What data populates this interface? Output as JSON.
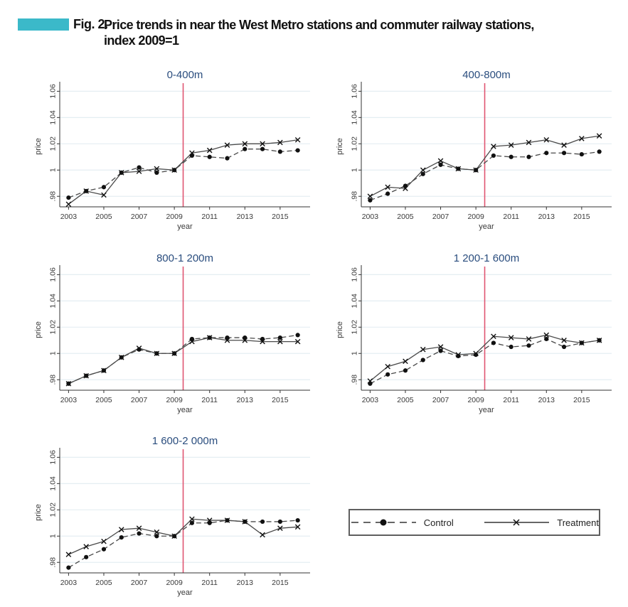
{
  "figure": {
    "label": "Fig. 2.",
    "title_line1": "Price trends in near the West Metro stations and commuter railway stations,",
    "title_line2": "index 2009=1"
  },
  "legend": {
    "control_label": "Control",
    "treatment_label": "Treatment"
  },
  "colors": {
    "accent_teal": "#3bb9c9",
    "panel_title_navy": "#2a4d7e",
    "event_line_red": "#e05571",
    "gridline": "#e4eef2",
    "series_line_gray": "#4a4a4a",
    "marker_black": "#111111",
    "axis_line": "#333333",
    "axis_text": "#3a3a3a"
  },
  "chart_data": [
    {
      "type": "line",
      "title": "0-400m",
      "xlabel": "year",
      "ylabel": "price",
      "x": [
        2003,
        2004,
        2005,
        2006,
        2007,
        2008,
        2009,
        2010,
        2011,
        2012,
        2013,
        2014,
        2015,
        2016
      ],
      "xticks": [
        2003,
        2005,
        2007,
        2009,
        2011,
        2013,
        2015
      ],
      "yticks": [
        0.98,
        1,
        1.02,
        1.04,
        1.06
      ],
      "ytick_labels": [
        ".98",
        "1",
        "1.02",
        "1.04",
        "1.06"
      ],
      "xlim": [
        2002.5,
        2016.7
      ],
      "ylim": [
        0.972,
        1.064
      ],
      "grid": true,
      "event_line_x": 2009.5,
      "series": [
        {
          "name": "Control",
          "style": "dashed-circle",
          "values": [
            0.979,
            0.984,
            0.987,
            0.998,
            1.002,
            0.998,
            1.0,
            1.011,
            1.01,
            1.009,
            1.016,
            1.016,
            1.014,
            1.015
          ]
        },
        {
          "name": "Treatment",
          "style": "solid-x",
          "values": [
            0.974,
            0.984,
            0.981,
            0.998,
            0.999,
            1.001,
            1.0,
            1.013,
            1.015,
            1.019,
            1.02,
            1.02,
            1.021,
            1.023
          ]
        }
      ]
    },
    {
      "type": "line",
      "title": "400-800m",
      "xlabel": "year",
      "ylabel": "price",
      "x": [
        2003,
        2004,
        2005,
        2006,
        2007,
        2008,
        2009,
        2010,
        2011,
        2012,
        2013,
        2014,
        2015,
        2016
      ],
      "xticks": [
        2003,
        2005,
        2007,
        2009,
        2011,
        2013,
        2015
      ],
      "yticks": [
        0.98,
        1,
        1.02,
        1.04,
        1.06
      ],
      "ytick_labels": [
        ".98",
        "1",
        "1.02",
        "1.04",
        "1.06"
      ],
      "xlim": [
        2002.5,
        2016.7
      ],
      "ylim": [
        0.972,
        1.064
      ],
      "grid": true,
      "event_line_x": 2009.5,
      "series": [
        {
          "name": "Control",
          "style": "dashed-circle",
          "values": [
            0.977,
            0.982,
            0.988,
            0.997,
            1.004,
            1.001,
            1.0,
            1.011,
            1.01,
            1.01,
            1.013,
            1.013,
            1.012,
            1.014
          ]
        },
        {
          "name": "Treatment",
          "style": "solid-x",
          "values": [
            0.98,
            0.987,
            0.986,
            1.0,
            1.007,
            1.001,
            1.0,
            1.018,
            1.019,
            1.021,
            1.023,
            1.019,
            1.024,
            1.026
          ]
        }
      ]
    },
    {
      "type": "line",
      "title": "800-1 200m",
      "xlabel": "year",
      "ylabel": "price",
      "x": [
        2003,
        2004,
        2005,
        2006,
        2007,
        2008,
        2009,
        2010,
        2011,
        2012,
        2013,
        2014,
        2015,
        2016
      ],
      "xticks": [
        2003,
        2005,
        2007,
        2009,
        2011,
        2013,
        2015
      ],
      "yticks": [
        0.98,
        1,
        1.02,
        1.04,
        1.06
      ],
      "ytick_labels": [
        ".98",
        "1",
        "1.02",
        "1.04",
        "1.06"
      ],
      "xlim": [
        2002.5,
        2016.7
      ],
      "ylim": [
        0.972,
        1.064
      ],
      "grid": true,
      "event_line_x": 2009.5,
      "series": [
        {
          "name": "Control",
          "style": "dashed-circle",
          "values": [
            0.977,
            0.983,
            0.987,
            0.997,
            1.003,
            1.0,
            1.0,
            1.011,
            1.012,
            1.012,
            1.012,
            1.011,
            1.012,
            1.014
          ]
        },
        {
          "name": "Treatment",
          "style": "solid-x",
          "values": [
            0.977,
            0.983,
            0.987,
            0.997,
            1.004,
            1.0,
            1.0,
            1.009,
            1.012,
            1.01,
            1.01,
            1.009,
            1.009,
            1.009
          ]
        }
      ]
    },
    {
      "type": "line",
      "title": "1 200-1 600m",
      "xlabel": "year",
      "ylabel": "price",
      "x": [
        2003,
        2004,
        2005,
        2006,
        2007,
        2008,
        2009,
        2010,
        2011,
        2012,
        2013,
        2014,
        2015,
        2016
      ],
      "xticks": [
        2003,
        2005,
        2007,
        2009,
        2011,
        2013,
        2015
      ],
      "yticks": [
        0.98,
        1,
        1.02,
        1.04,
        1.06
      ],
      "ytick_labels": [
        ".98",
        "1",
        "1.02",
        "1.04",
        "1.06"
      ],
      "xlim": [
        2002.5,
        2016.7
      ],
      "ylim": [
        0.972,
        1.064
      ],
      "grid": true,
      "event_line_x": 2009.5,
      "series": [
        {
          "name": "Control",
          "style": "dashed-circle",
          "values": [
            0.977,
            0.984,
            0.987,
            0.995,
            1.002,
            0.998,
            0.999,
            1.008,
            1.005,
            1.006,
            1.011,
            1.005,
            1.008,
            1.01
          ]
        },
        {
          "name": "Treatment",
          "style": "solid-x",
          "values": [
            0.979,
            0.99,
            0.994,
            1.003,
            1.005,
            0.999,
            1.0,
            1.013,
            1.012,
            1.011,
            1.014,
            1.01,
            1.008,
            1.01
          ]
        }
      ]
    },
    {
      "type": "line",
      "title": "1 600-2 000m",
      "xlabel": "year",
      "ylabel": "price",
      "x": [
        2003,
        2004,
        2005,
        2006,
        2007,
        2008,
        2009,
        2010,
        2011,
        2012,
        2013,
        2014,
        2015,
        2016
      ],
      "xticks": [
        2003,
        2005,
        2007,
        2009,
        2011,
        2013,
        2015
      ],
      "yticks": [
        0.98,
        1,
        1.02,
        1.04,
        1.06
      ],
      "ytick_labels": [
        ".98",
        "1",
        "1.02",
        "1.04",
        "1.06"
      ],
      "xlim": [
        2002.5,
        2016.7
      ],
      "ylim": [
        0.972,
        1.064
      ],
      "grid": true,
      "event_line_x": 2009.5,
      "series": [
        {
          "name": "Control",
          "style": "dashed-circle",
          "values": [
            0.976,
            0.984,
            0.99,
            0.999,
            1.002,
            1.0,
            1.0,
            1.01,
            1.01,
            1.012,
            1.011,
            1.011,
            1.011,
            1.012
          ]
        },
        {
          "name": "Treatment",
          "style": "solid-x",
          "values": [
            0.986,
            0.992,
            0.996,
            1.005,
            1.006,
            1.003,
            1.0,
            1.013,
            1.012,
            1.012,
            1.011,
            1.001,
            1.006,
            1.007
          ]
        }
      ]
    }
  ]
}
